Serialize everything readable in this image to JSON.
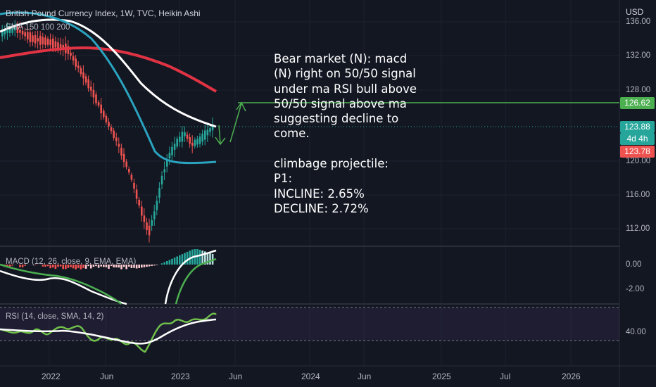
{
  "header": {
    "symbol_title": "British Pound Currency Index, 1W, TVC, Heikin Ashi",
    "ema_label": "EMA 150 100 200",
    "currency": "USD"
  },
  "price_scale": [
    "136.00",
    "132.00",
    "128.00",
    "120.00",
    "116.00",
    "112.00"
  ],
  "price_badges": {
    "target": "126.62",
    "last": "123.88",
    "countdown": "4d 4h",
    "low": "123.78"
  },
  "macd": {
    "label": "MACD (12, 26, close, 9, EMA, EMA)",
    "scale": [
      "0.00",
      "-2.00"
    ]
  },
  "rsi": {
    "label": "RSI (14, close, SMA, 14, 2)",
    "scale": [
      "40.00"
    ]
  },
  "time_axis": [
    "2022",
    "Jun",
    "2023",
    "Jun",
    "2024",
    "Jun",
    "2025",
    "Jul",
    "2026"
  ],
  "annotation": {
    "text": "Bear market (N): macd\n(N) right on 50/50 signal\nunder ma RSI bull above\n50/50 signal above ma\nsuggesting decline to\ncome.\n\nclimbage projectile:\nP1:\nINCLINE: 2.65%\nDECLINE: 2.72%"
  },
  "colors": {
    "background": "#131722",
    "bull": "#26a69a",
    "bear": "#ef5350",
    "ema_white": "#ffffff",
    "ema_blue": "#2aa3bf",
    "ema_red": "#e03344",
    "target_line": "#4caf50",
    "macd_signal": "#4caf50",
    "rsi_line": "#6fbf4a"
  }
}
